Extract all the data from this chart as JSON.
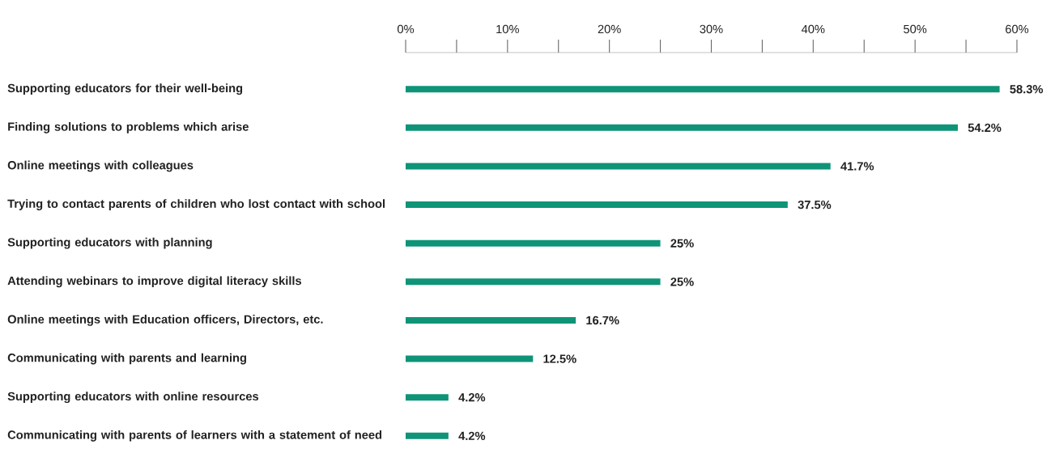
{
  "chart_data": {
    "type": "bar",
    "orientation": "horizontal",
    "categories": [
      "Supporting educators for their well-being",
      "Finding solutions to problems which arise",
      "Online meetings with colleagues",
      "Trying to contact parents of children who lost contact with school",
      "Supporting educators with planning",
      "Attending webinars to improve digital literacy skills",
      "Online meetings with Education officers, Directors, etc.",
      "Communicating with parents and learning",
      "Supporting educators with online resources",
      "Communicating with parents of learners with a statement of need"
    ],
    "values": [
      58.3,
      54.2,
      41.7,
      37.5,
      25,
      25,
      16.7,
      12.5,
      4.2,
      4.2
    ],
    "value_labels": [
      "58.3%",
      "54.2%",
      "41.7%",
      "37.5%",
      "25%",
      "25%",
      "16.7%",
      "12.5%",
      "4.2%",
      "4.2%"
    ],
    "color": "#0f9478",
    "xlim": [
      0,
      60
    ],
    "xticks": [
      {
        "value": 0,
        "label": "0%"
      },
      {
        "value": 10,
        "label": "10%"
      },
      {
        "value": 20,
        "label": "20%"
      },
      {
        "value": 30,
        "label": "30%"
      },
      {
        "value": 40,
        "label": "40%"
      },
      {
        "value": 50,
        "label": "50%"
      },
      {
        "value": 60,
        "label": "60%"
      }
    ]
  }
}
